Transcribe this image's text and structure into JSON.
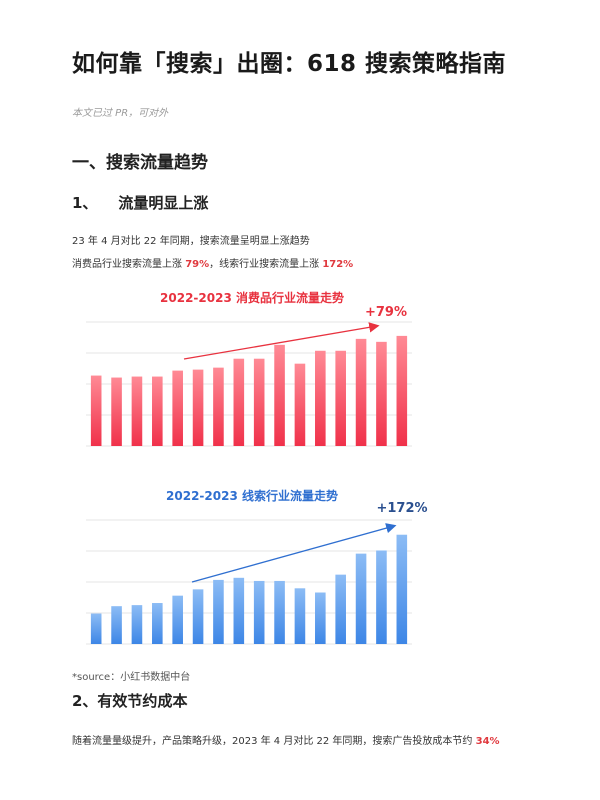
{
  "title": "如何靠「搜索」出圈：618 搜索策略指南",
  "note": "本文已过 PR，可对外",
  "section1": {
    "heading": "一、搜索流量趋势",
    "sub1": {
      "heading": "1、    流量明显上涨",
      "line1": "23 年 4 月对比 22 年同期，搜索流量呈明显上涨趋势",
      "line2_pre": "消费品行业搜索流量上涨 ",
      "line2_val1": "79%",
      "line2_mid": "，线索行业搜索流量上涨 ",
      "line2_val2": "172%"
    }
  },
  "source_note": "*source：小红书数据中台",
  "section2": {
    "heading": "2、有效节约成本",
    "line_pre": "随着流量量级提升，产品策略升级，2023 年 4 月对比 22 年同期，搜索广告投放成本节约 ",
    "line_val": "34%"
  },
  "colors": {
    "consumer_bar_top": "#ff8a95",
    "consumer_bar_bottom": "#f0314a",
    "consumer_title": "#e8323f",
    "leads_bar_top": "#8cbcf5",
    "leads_bar_bottom": "#3d86e6",
    "leads_title": "#2f6fd0",
    "highlight": "#e0393e"
  },
  "chart_data": [
    {
      "type": "bar",
      "title": "2022-2023 消费品行业流量走势",
      "annotation": "+79%",
      "values": [
        71,
        69,
        70,
        70,
        76,
        77,
        79,
        88,
        88,
        102,
        83,
        96,
        96,
        108,
        105,
        111
      ],
      "ylim": [
        0,
        125
      ],
      "grid": true
    },
    {
      "type": "bar",
      "title": "2022-2023 线索行业流量走势",
      "annotation": "+172%",
      "values": [
        29,
        36,
        37,
        39,
        46,
        52,
        61,
        63,
        60,
        60,
        53,
        49,
        66,
        86,
        89,
        104
      ],
      "ylim": [
        0,
        118
      ],
      "grid": true
    }
  ]
}
